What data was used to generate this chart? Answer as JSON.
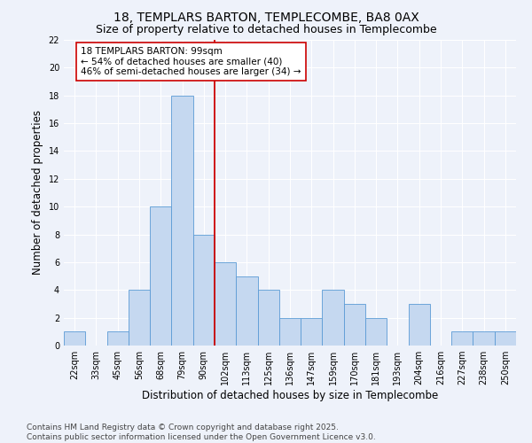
{
  "title": "18, TEMPLARS BARTON, TEMPLECOMBE, BA8 0AX",
  "subtitle": "Size of property relative to detached houses in Templecombe",
  "xlabel": "Distribution of detached houses by size in Templecombe",
  "ylabel": "Number of detached properties",
  "categories": [
    "22sqm",
    "33sqm",
    "45sqm",
    "56sqm",
    "68sqm",
    "79sqm",
    "90sqm",
    "102sqm",
    "113sqm",
    "125sqm",
    "136sqm",
    "147sqm",
    "159sqm",
    "170sqm",
    "181sqm",
    "193sqm",
    "204sqm",
    "216sqm",
    "227sqm",
    "238sqm",
    "250sqm"
  ],
  "values": [
    1,
    0,
    1,
    4,
    10,
    18,
    8,
    6,
    5,
    4,
    2,
    2,
    4,
    3,
    2,
    0,
    3,
    0,
    1,
    1,
    1
  ],
  "bar_color": "#c5d8f0",
  "bar_edge_color": "#5b9bd5",
  "bar_width": 1.0,
  "vline_color": "#cc0000",
  "annotation_text": "18 TEMPLARS BARTON: 99sqm\n← 54% of detached houses are smaller (40)\n46% of semi-detached houses are larger (34) →",
  "annotation_box_color": "#ffffff",
  "annotation_box_edge": "#cc0000",
  "ylim": [
    0,
    22
  ],
  "yticks": [
    0,
    2,
    4,
    6,
    8,
    10,
    12,
    14,
    16,
    18,
    20,
    22
  ],
  "background_color": "#eef2fa",
  "grid_color": "#ffffff",
  "footer_text": "Contains HM Land Registry data © Crown copyright and database right 2025.\nContains public sector information licensed under the Open Government Licence v3.0.",
  "title_fontsize": 10,
  "subtitle_fontsize": 9,
  "xlabel_fontsize": 8.5,
  "ylabel_fontsize": 8.5,
  "tick_fontsize": 7,
  "annotation_fontsize": 7.5,
  "footer_fontsize": 6.5
}
